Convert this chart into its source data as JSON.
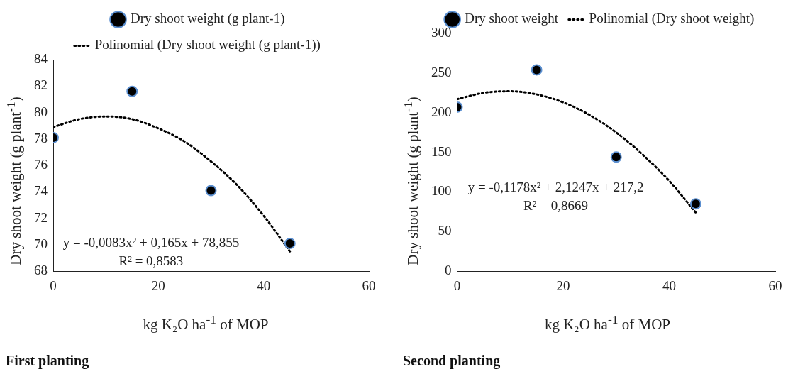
{
  "chart_data": [
    {
      "type": "scatter",
      "title": "First planting",
      "xlabel": "kg K₂O ha$^{-1}$ of MOP",
      "ylabel": "Dry shoot weight (g plant$^{-1}$)",
      "xlim": [
        0,
        60
      ],
      "xticks": [
        0,
        20,
        40,
        60
      ],
      "ylim": [
        68,
        84
      ],
      "yticks": [
        68,
        70,
        72,
        74,
        76,
        78,
        80,
        82,
        84
      ],
      "grid": false,
      "legend": "top",
      "annotations": [
        "y = -0,0083x² + 0,165x + 78,855",
        "R² = 0,8583"
      ],
      "series": [
        {
          "name": "Dry shoot weight (g plant-1)",
          "type": "scatter",
          "marker": "circle",
          "color": "#000000",
          "x": [
            0,
            15,
            30,
            45
          ],
          "values": [
            78.1,
            81.6,
            74.1,
            70.1
          ]
        },
        {
          "name": "Polinomial (Dry shoot weight (g plant-1))",
          "type": "line",
          "marker": "none",
          "line_style": "dotted",
          "color": "#000000",
          "x": [
            0,
            5,
            10,
            15,
            20,
            25,
            30,
            35,
            40,
            45
          ],
          "values": [
            78.9,
            79.5,
            79.7,
            79.5,
            78.8,
            77.8,
            76.3,
            74.5,
            72.2,
            69.5
          ]
        }
      ]
    },
    {
      "type": "scatter",
      "title": "Second planting",
      "xlabel": "kg K₂O ha$^{-1}$ of MOP",
      "ylabel": "Dry shoot weight (g plant$^{-1}$)",
      "xlim": [
        0,
        60
      ],
      "xticks": [
        0,
        20,
        40,
        60
      ],
      "ylim": [
        0,
        300
      ],
      "yticks": [
        0,
        50,
        100,
        150,
        200,
        250,
        300
      ],
      "grid": false,
      "legend": "top",
      "annotations": [
        "y = -0,1178x² + 2,1247x + 217,2",
        "R² = 0,8669"
      ],
      "series": [
        {
          "name": "Dry shoot weight",
          "type": "scatter",
          "marker": "circle",
          "color": "#000000",
          "x": [
            0,
            15,
            30,
            45
          ],
          "values": [
            207,
            254,
            144,
            85
          ]
        },
        {
          "name": "Polinomial (Dry shoot weight)",
          "type": "line",
          "marker": "none",
          "line_style": "dotted",
          "color": "#000000",
          "x": [
            0,
            5,
            10,
            15,
            20,
            25,
            30,
            35,
            40,
            45
          ],
          "values": [
            217,
            225,
            227,
            223,
            213,
            197,
            175,
            147,
            114,
            74
          ]
        }
      ]
    }
  ]
}
